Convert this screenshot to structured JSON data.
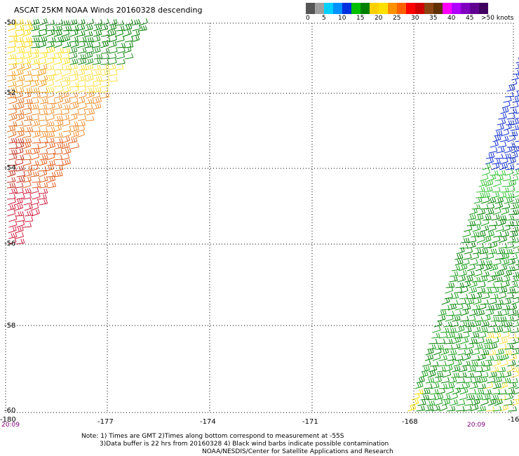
{
  "title": "ASCAT 25KM NOAA Winds 20160328 descending",
  "scale": {
    "colors": [
      "#555555",
      "#a0a0a0",
      "#00d0ff",
      "#0090ff",
      "#0030e0",
      "#00c000",
      "#008000",
      "#ffd000",
      "#ffe000",
      "#ff9000",
      "#ff6000",
      "#ff0000",
      "#d00000",
      "#8b4513",
      "#603000",
      "#ff00ff",
      "#b000ff",
      "#8000c0",
      "#600090",
      "#400060"
    ],
    "labels": [
      "0",
      "5",
      "10",
      "15",
      "20",
      "25",
      "30",
      "35",
      "40",
      "45",
      ">50 knots"
    ]
  },
  "grid": {
    "lat_labels": [
      "-50",
      "-52",
      "-54",
      "-56",
      "-58",
      "-60"
    ],
    "lon_labels": [
      "-180",
      "-177",
      "-174",
      "-171",
      "-168",
      "-16"
    ],
    "time_left": "20:09",
    "time_right": "20:09"
  },
  "notes": {
    "line1": "Note: 1) Times are GMT 2)Times along bottom correspond to measurement at -55S",
    "line2": "3)Data buffer is 22 hrs from 20160328 4) Black wind barbs indicate possible contamination",
    "line3": "NOAA/NESDIS/Center for Satellite Applications and Research"
  }
}
